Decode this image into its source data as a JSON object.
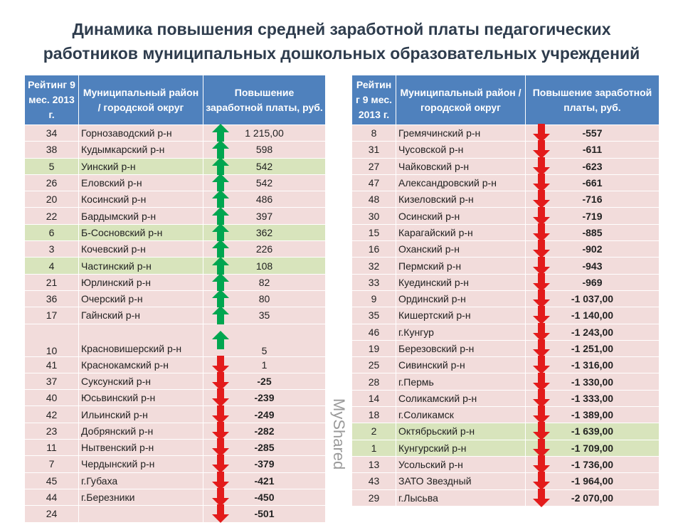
{
  "title": {
    "line1": "Динамика  повышения средней заработной платы педагогических",
    "line2": "работников муниципальных дошкольных образовательных учреждений"
  },
  "colors": {
    "header": "#4f81bd",
    "row_default": "#f2dcdb",
    "row_highlight": "#d8e4bc",
    "arrow_up": "#00a650",
    "arrow_down": "#e31b1b"
  },
  "left_table": {
    "headers": [
      "Рейтинг 9 мес. 2013 г.",
      "Муниципальный район / городской округ",
      "Повышение заработной платы, руб."
    ],
    "rows": [
      {
        "rank": "34",
        "name": "Горнозаводский р-н",
        "value": "1 215,00",
        "arrow": "up",
        "highlight": false
      },
      {
        "rank": "38",
        "name": "Кудымкарский р-н",
        "value": "598",
        "arrow": "up",
        "highlight": false
      },
      {
        "rank": "5",
        "name": "Уинский р-н",
        "value": "542",
        "arrow": "up",
        "highlight": true
      },
      {
        "rank": "26",
        "name": "Еловский р-н",
        "value": "542",
        "arrow": "up",
        "highlight": false
      },
      {
        "rank": "20",
        "name": "Косинский р-н",
        "value": "486",
        "arrow": "up",
        "highlight": false
      },
      {
        "rank": "22",
        "name": "Бардымский р-н",
        "value": "397",
        "arrow": "up",
        "highlight": false
      },
      {
        "rank": "6",
        "name": "Б-Сосновский р-н",
        "value": "362",
        "arrow": "up",
        "highlight": true
      },
      {
        "rank": "3",
        "name": "Кочевский р-н",
        "value": "226",
        "arrow": "up",
        "highlight": false
      },
      {
        "rank": "4",
        "name": "Частинский р-н",
        "value": "108",
        "arrow": "up",
        "highlight": true
      },
      {
        "rank": "21",
        "name": "Юрлинский р-н",
        "value": "82",
        "arrow": "up",
        "highlight": false
      },
      {
        "rank": "36",
        "name": "Очерский р-н",
        "value": "80",
        "arrow": "up",
        "highlight": false
      },
      {
        "rank": "17",
        "name": "Гайнский р-н",
        "value": "35",
        "arrow": "up",
        "highlight": false
      },
      {
        "rank": "10",
        "name": "Красновишерский р-н",
        "value": "5",
        "arrow": "up",
        "highlight": false,
        "tall": true
      },
      {
        "rank": "41",
        "name": "Краснокамский р-н",
        "value": "1",
        "arrow": "down",
        "highlight": false
      },
      {
        "rank": "37",
        "name": "Суксунский р-н",
        "value": "-25",
        "arrow": "down",
        "highlight": false
      },
      {
        "rank": "40",
        "name": "Юсьвинский р-н",
        "value": "-239",
        "arrow": "down",
        "highlight": false
      },
      {
        "rank": "42",
        "name": "Ильинский р-н",
        "value": "-249",
        "arrow": "down",
        "highlight": false
      },
      {
        "rank": "23",
        "name": "Добрянский р-н",
        "value": "-282",
        "arrow": "down",
        "highlight": false
      },
      {
        "rank": "11",
        "name": "Нытвенский р-н",
        "value": "-285",
        "arrow": "down",
        "highlight": false
      },
      {
        "rank": "7",
        "name": "Чердынский р-н",
        "value": "-379",
        "arrow": "down",
        "highlight": false
      },
      {
        "rank": "45",
        "name": "г.Губаха",
        "value": "-421",
        "arrow": "down",
        "highlight": false
      },
      {
        "rank": "44",
        "name": "г.Березники",
        "value": "-450",
        "arrow": "down",
        "highlight": false
      },
      {
        "rank": "24",
        "name": "",
        "value": "-501",
        "arrow": "down",
        "highlight": false
      }
    ]
  },
  "right_table": {
    "headers": [
      "Рейтин г 9 мес. 2013 г.",
      "Муниципальный район / городской округ",
      "Повышение заработной платы, руб."
    ],
    "rows": [
      {
        "rank": "8",
        "name": "Гремячинский р-н",
        "value": "-557",
        "arrow": "down",
        "highlight": false
      },
      {
        "rank": "31",
        "name": "Чусовской р-н",
        "value": "-611",
        "arrow": "down",
        "highlight": false
      },
      {
        "rank": "27",
        "name": "Чайковский р-н",
        "value": "-623",
        "arrow": "down",
        "highlight": false
      },
      {
        "rank": "47",
        "name": "Александровский р-н",
        "value": "-661",
        "arrow": "down",
        "highlight": false
      },
      {
        "rank": "48",
        "name": "Кизеловский р-н",
        "value": "-716",
        "arrow": "down",
        "highlight": false
      },
      {
        "rank": "30",
        "name": "Осинский р-н",
        "value": "-719",
        "arrow": "down",
        "highlight": false
      },
      {
        "rank": "15",
        "name": "Карагайский р-н",
        "value": "-885",
        "arrow": "down",
        "highlight": false
      },
      {
        "rank": "16",
        "name": "Оханский р-н",
        "value": "-902",
        "arrow": "down",
        "highlight": false
      },
      {
        "rank": "32",
        "name": "Пермский р-н",
        "value": "-943",
        "arrow": "down",
        "highlight": false
      },
      {
        "rank": "33",
        "name": "Куединский р-н",
        "value": "-969",
        "arrow": "down",
        "highlight": false
      },
      {
        "rank": "9",
        "name": "Ординский р-н",
        "value": "-1 037,00",
        "arrow": "down",
        "highlight": false
      },
      {
        "rank": "35",
        "name": "Кишертский р-н",
        "value": "-1 140,00",
        "arrow": "down",
        "highlight": false
      },
      {
        "rank": "46",
        "name": "г.Кунгур",
        "value": "-1 243,00",
        "arrow": "down",
        "highlight": false
      },
      {
        "rank": "19",
        "name": "Березовский р-н",
        "value": "-1 251,00",
        "arrow": "down",
        "highlight": false
      },
      {
        "rank": "25",
        "name": "Сивинский р-н",
        "value": "-1 316,00",
        "arrow": "down",
        "highlight": false
      },
      {
        "rank": "28",
        "name": "г.Пермь",
        "value": "-1 330,00",
        "arrow": "down",
        "highlight": false
      },
      {
        "rank": "14",
        "name": "Соликамский р-н",
        "value": "-1 333,00",
        "arrow": "down",
        "highlight": false
      },
      {
        "rank": "18",
        "name": "г.Соликамск",
        "value": "-1 389,00",
        "arrow": "down",
        "highlight": false
      },
      {
        "rank": "2",
        "name": "Октябрьский р-н",
        "value": "-1 639,00",
        "arrow": "down",
        "highlight": true
      },
      {
        "rank": "1",
        "name": "Кунгурский р-н",
        "value": "-1 709,00",
        "arrow": "down",
        "highlight": true
      },
      {
        "rank": "13",
        "name": "Усольский р-н",
        "value": "-1 736,00",
        "arrow": "down",
        "highlight": false
      },
      {
        "rank": "43",
        "name": "ЗАТО Звездный",
        "value": "-1 964,00",
        "arrow": "down",
        "highlight": false
      },
      {
        "rank": "29",
        "name": "г.Лысьва",
        "value": "-2 070,00",
        "arrow": "down",
        "highlight": false
      }
    ]
  },
  "watermark": "MyShared"
}
